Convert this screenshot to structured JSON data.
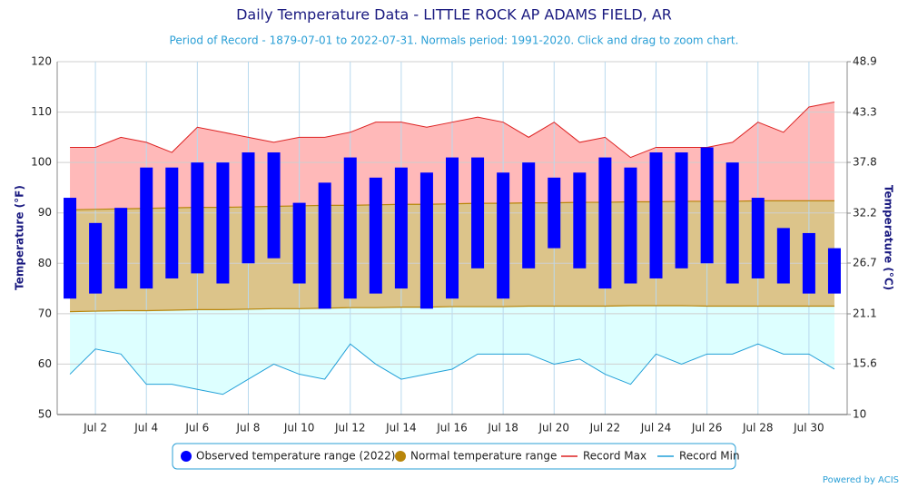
{
  "chart_data": {
    "type": "range",
    "title": "Daily Temperature Data - LITTLE ROCK AP ADAMS FIELD, AR",
    "subtitle": "Period of Record - 1879-07-01 to 2022-07-31. Normals period: 1991-2020. Click and drag to zoom chart.",
    "y_label": "Temperature (°F)",
    "y2_label": "Temperature (°C)",
    "credit": "Powered by ACIS",
    "legend": "bottom",
    "grid": true,
    "ylim": [
      50,
      120
    ],
    "yticks": [
      50,
      60,
      70,
      80,
      90,
      100,
      110,
      120
    ],
    "y2lim": [
      10,
      48.9
    ],
    "y2ticks": [
      10,
      15.6,
      21.1,
      26.7,
      32.2,
      37.8,
      43.3,
      48.9
    ],
    "categories": [
      null,
      "Jul 2",
      null,
      "Jul 4",
      null,
      "Jul 6",
      null,
      "Jul 8",
      null,
      "Jul 10",
      null,
      "Jul 12",
      null,
      "Jul 14",
      null,
      "Jul 16",
      null,
      "Jul 18",
      null,
      "Jul 20",
      null,
      "Jul 22",
      null,
      "Jul 24",
      null,
      "Jul 26",
      null,
      "Jul 28",
      null,
      "Jul 30",
      null
    ],
    "series": [
      {
        "name": "Observed temperature range (2022)",
        "color": "#0000ff",
        "low": [
          73,
          74,
          75,
          75,
          77,
          78,
          76,
          80,
          81,
          76,
          71,
          73,
          74,
          75,
          71,
          73,
          79,
          73,
          79,
          83,
          79,
          75,
          76,
          77,
          79,
          80,
          76,
          77,
          76,
          74,
          74
        ],
        "high": [
          93,
          88,
          91,
          99,
          99,
          100,
          100,
          102,
          102,
          92,
          96,
          101,
          97,
          99,
          98,
          101,
          101,
          98,
          100,
          97,
          98,
          101,
          99,
          102,
          102,
          103,
          100,
          93,
          87,
          86,
          83
        ]
      },
      {
        "name": "Normal temperature range",
        "color": "#b8860b",
        "low": [
          70.4,
          70.5,
          70.6,
          70.6,
          70.7,
          70.8,
          70.8,
          70.9,
          71.0,
          71.0,
          71.1,
          71.2,
          71.2,
          71.3,
          71.3,
          71.4,
          71.4,
          71.4,
          71.5,
          71.5,
          71.5,
          71.5,
          71.6,
          71.6,
          71.6,
          71.5,
          71.5,
          71.5,
          71.5,
          71.5,
          71.5
        ],
        "high": [
          90.6,
          90.7,
          90.8,
          90.9,
          91.0,
          91.1,
          91.1,
          91.2,
          91.3,
          91.4,
          91.5,
          91.5,
          91.6,
          91.7,
          91.7,
          91.8,
          91.9,
          91.9,
          92.0,
          92.0,
          92.1,
          92.1,
          92.2,
          92.2,
          92.3,
          92.3,
          92.3,
          92.4,
          92.4,
          92.4,
          92.4
        ]
      },
      {
        "name": "Record Max",
        "color": "#dd2222",
        "values": [
          103,
          103,
          105,
          104,
          102,
          107,
          106,
          105,
          104,
          105,
          105,
          106,
          108,
          108,
          107,
          108,
          109,
          108,
          105,
          108,
          104,
          105,
          101,
          103,
          103,
          103,
          104,
          108,
          106,
          111,
          112
        ]
      },
      {
        "name": "Record Min",
        "color": "#22a0d8",
        "values": [
          58,
          63,
          62,
          56,
          56,
          55,
          54,
          57,
          60,
          58,
          57,
          64,
          60,
          57,
          58,
          59,
          62,
          62,
          62,
          60,
          61,
          58,
          56,
          62,
          60,
          62,
          62,
          64,
          62,
          62,
          59
        ]
      }
    ]
  }
}
